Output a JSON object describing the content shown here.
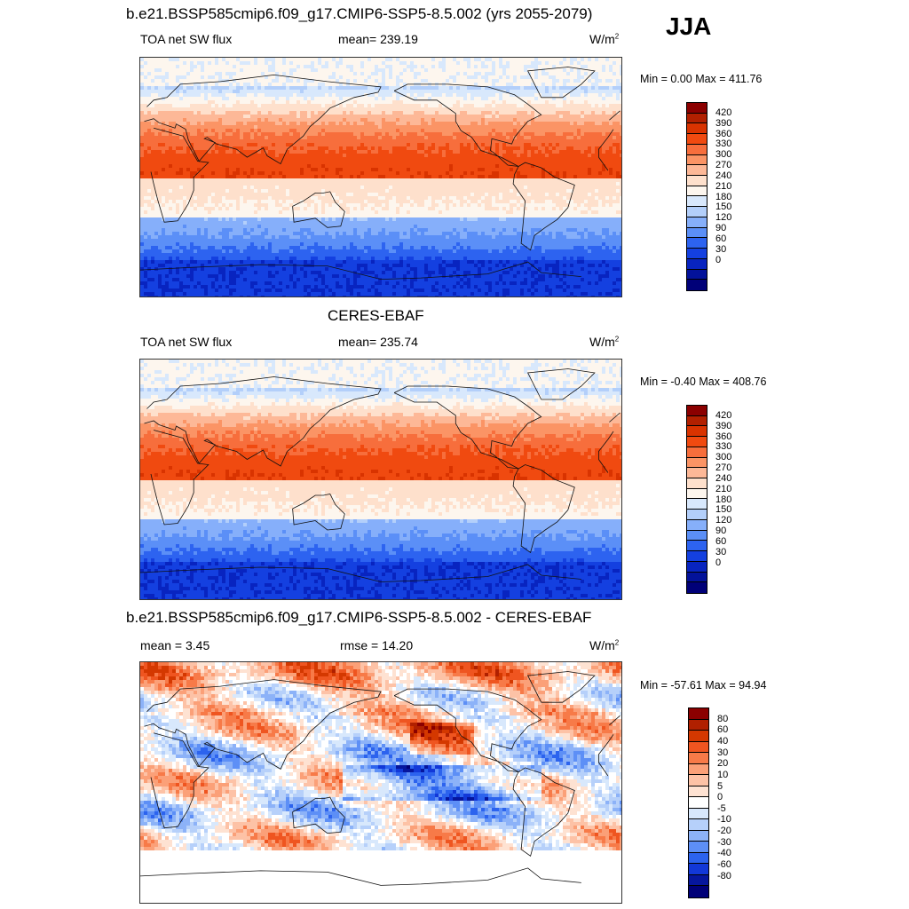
{
  "season": "JJA",
  "panels": [
    {
      "title": "b.e21.BSSP585cmip6.f09_g17.CMIP6-SSP5-8.5.002 (yrs 2055-2079)",
      "left_label": "TOA net SW flux",
      "center_label": "mean= 239.19",
      "units": "W/m",
      "units_sup": "2",
      "minmax": "Min =   0.00 Max = 411.76",
      "colorbar_ticks": [
        "420",
        "390",
        "360",
        "330",
        "300",
        "270",
        "240",
        "210",
        "180",
        "150",
        "120",
        "90",
        "60",
        "30",
        "0"
      ]
    },
    {
      "title": "CERES-EBAF",
      "left_label": "TOA net SW flux",
      "center_label": "mean= 235.74",
      "units": "W/m",
      "units_sup": "2",
      "minmax": "Min =  -0.40 Max = 408.76",
      "colorbar_ticks": [
        "420",
        "390",
        "360",
        "330",
        "300",
        "270",
        "240",
        "210",
        "180",
        "150",
        "120",
        "90",
        "60",
        "30",
        "0"
      ]
    },
    {
      "title": "b.e21.BSSP585cmip6.f09_g17.CMIP6-SSP5-8.5.002 - CERES-EBAF",
      "left_label": "mean =   3.45",
      "center_label": "rmse =  14.20",
      "units": "W/m",
      "units_sup": "2",
      "minmax": "Min = -57.61 Max =  94.94",
      "colorbar_ticks": [
        "80",
        "60",
        "40",
        "30",
        "20",
        "10",
        "5",
        "0",
        "-5",
        "-10",
        "-20",
        "-30",
        "-40",
        "-60",
        "-80"
      ]
    }
  ],
  "colors": {
    "flux_scale": [
      "#8b0000",
      "#b22000",
      "#d93300",
      "#f04a10",
      "#f76e3c",
      "#fb9465",
      "#fdb897",
      "#fee0cc",
      "#fdf6ee",
      "#d8e8fc",
      "#b3cffa",
      "#86affa",
      "#5b8ff7",
      "#2d63f0",
      "#1440e0",
      "#0824c0",
      "#03129a",
      "#000078"
    ],
    "diff_scale": [
      "#8b0000",
      "#b02000",
      "#d43800",
      "#ef5520",
      "#f77a48",
      "#fba078",
      "#fdc2a6",
      "#fee2d2",
      "#ffffff",
      "#d8e8fc",
      "#b6d0fa",
      "#8cb2f8",
      "#5d8ff6",
      "#2c63ee",
      "#1238d8",
      "#06169e",
      "#000078"
    ]
  }
}
